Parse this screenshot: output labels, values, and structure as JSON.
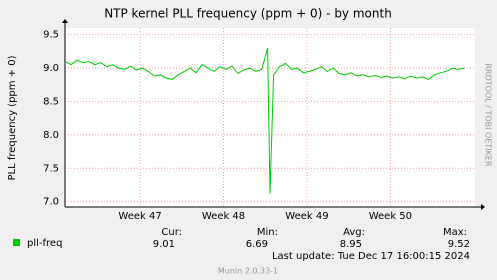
{
  "chart_data": {
    "type": "line",
    "title": "NTP kernel PLL frequency (ppm + 0) - by month",
    "y_label": "PLL frequency (ppm + 0)",
    "x": [
      0,
      0.5,
      1,
      1.5,
      2,
      2.5,
      3,
      3.5,
      4,
      4.5,
      5,
      5.5,
      6,
      6.5,
      7,
      7.5,
      8,
      8.5,
      9,
      9.5,
      10,
      10.5,
      11,
      11.5,
      12,
      12.5,
      13,
      13.5,
      14,
      14.5,
      15,
      15.5,
      16,
      16.5,
      17,
      17.2,
      17.5,
      18,
      18.5,
      19,
      19.5,
      20,
      20.5,
      21,
      21.5,
      22,
      22.5,
      23,
      23.5,
      24,
      24.5,
      25,
      25.5,
      26,
      26.5,
      27,
      27.5,
      28,
      28.5,
      29,
      29.5,
      30,
      30.5,
      31,
      31.5,
      32,
      32.5,
      33,
      33.5
    ],
    "series": [
      {
        "name": "pll-freq",
        "color": "#00cc00",
        "values": [
          9.1,
          9.05,
          9.12,
          9.08,
          9.1,
          9.05,
          9.08,
          9.02,
          9.05,
          9.0,
          8.98,
          9.03,
          8.97,
          9.0,
          8.95,
          8.88,
          8.9,
          8.85,
          8.83,
          8.9,
          8.95,
          9.0,
          8.93,
          9.05,
          9.0,
          8.95,
          9.02,
          8.98,
          9.03,
          8.92,
          8.97,
          9.0,
          8.95,
          8.98,
          9.3,
          7.12,
          8.9,
          9.02,
          9.07,
          8.98,
          9.0,
          8.93,
          8.95,
          8.98,
          9.02,
          8.95,
          9.0,
          8.92,
          8.9,
          8.93,
          8.88,
          8.9,
          8.87,
          8.89,
          8.86,
          8.88,
          8.85,
          8.87,
          8.84,
          8.88,
          8.85,
          8.87,
          8.83,
          8.9,
          8.93,
          8.95,
          9.0,
          8.98,
          9.0
        ]
      }
    ],
    "xlim": [
      0,
      34.4
    ],
    "xticks": [
      {
        "value": 6.3,
        "label": "Week 47"
      },
      {
        "value": 13.3,
        "label": "Week 48"
      },
      {
        "value": 20.3,
        "label": "Week 49"
      },
      {
        "value": 27.3,
        "label": "Week 50"
      }
    ],
    "ylim": [
      6.92,
      9.6
    ],
    "yticks": [
      {
        "value": 7,
        "label": "7.0"
      },
      7.5,
      {
        "value": 8,
        "label": "8.0"
      },
      8.5,
      {
        "value": 9,
        "label": "9.0"
      },
      9.5
    ],
    "grid": true,
    "stats": {
      "headers": [
        "Cur:",
        "Min:",
        "Avg:",
        "Max:"
      ],
      "values": [
        9.01,
        6.69,
        8.95,
        9.52
      ]
    },
    "last_update": "Last update:  Tue Dec 17 16:00:15 2024",
    "watermark": "RRDTOOL / TOBI OETIKER",
    "footer": "Munin 2.0.33-1"
  }
}
